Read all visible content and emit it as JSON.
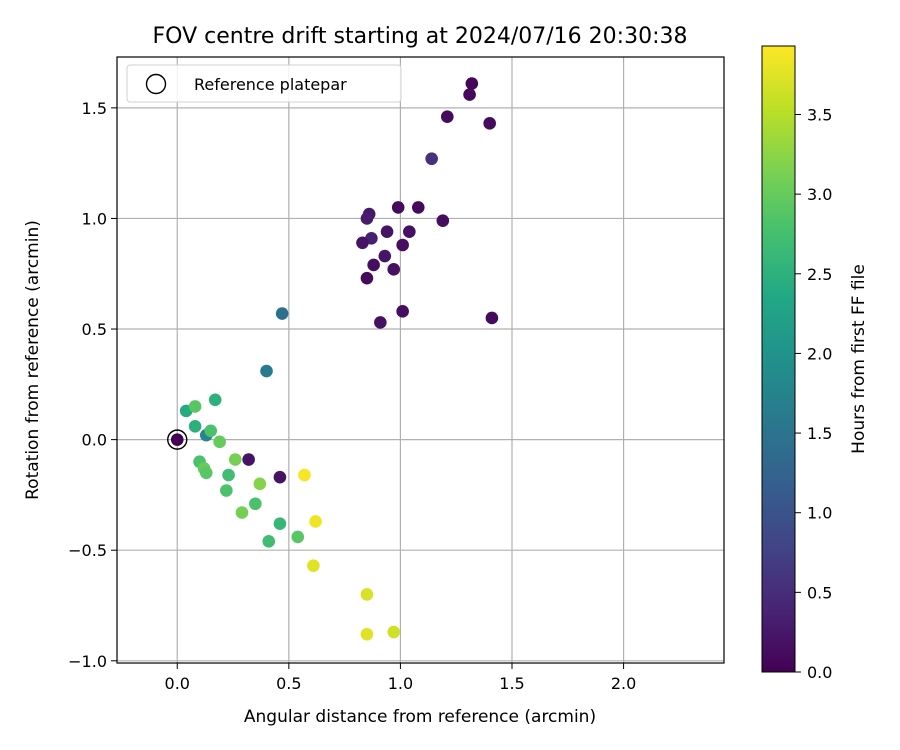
{
  "chart_data": {
    "type": "scatter",
    "title": "FOV centre drift starting at 2024/07/16 20:30:38",
    "xlabel": "Angular distance from reference (arcmin)",
    "ylabel": "Rotation from reference (arcmin)",
    "xlim": [
      -0.27,
      2.45
    ],
    "ylim": [
      -1.01,
      1.73
    ],
    "xticks": [
      0.0,
      0.5,
      1.0,
      1.5,
      2.0
    ],
    "xtick_labels": [
      "0.0",
      "0.5",
      "1.0",
      "1.5",
      "2.0"
    ],
    "yticks": [
      -1.0,
      -0.5,
      0.0,
      0.5,
      1.0,
      1.5
    ],
    "ytick_labels": [
      "−1.0",
      "−0.5",
      "0.0",
      "0.5",
      "1.0",
      "1.5"
    ],
    "grid": true,
    "legend": {
      "entries": [
        "Reference platepar"
      ],
      "position": "top-left"
    },
    "reference_point": {
      "x": 0.0,
      "y": 0.0,
      "marker": "open-circle"
    },
    "colorbar": {
      "label": "Hours from first FF file",
      "colormap": "viridis",
      "range": [
        0.0,
        3.93
      ],
      "ticks": [
        0.0,
        0.5,
        1.0,
        1.5,
        2.0,
        2.5,
        3.0,
        3.5
      ],
      "tick_labels": [
        "0.0",
        "0.5",
        "1.0",
        "1.5",
        "2.0",
        "2.5",
        "3.0",
        "3.5"
      ]
    },
    "points": [
      {
        "x": 0.0,
        "y": 0.0,
        "c": 0.0
      },
      {
        "x": 1.32,
        "y": 1.61,
        "c": 0.05
      },
      {
        "x": 1.31,
        "y": 1.56,
        "c": 0.08
      },
      {
        "x": 1.21,
        "y": 1.46,
        "c": 0.1
      },
      {
        "x": 1.4,
        "y": 1.43,
        "c": 0.12
      },
      {
        "x": 1.14,
        "y": 1.27,
        "c": 0.55
      },
      {
        "x": 0.86,
        "y": 1.02,
        "c": 0.25
      },
      {
        "x": 0.85,
        "y": 1.0,
        "c": 0.3
      },
      {
        "x": 0.99,
        "y": 1.05,
        "c": 0.12
      },
      {
        "x": 1.08,
        "y": 1.05,
        "c": 0.1
      },
      {
        "x": 1.19,
        "y": 0.99,
        "c": 0.15
      },
      {
        "x": 0.94,
        "y": 0.94,
        "c": 0.2
      },
      {
        "x": 1.04,
        "y": 0.94,
        "c": 0.18
      },
      {
        "x": 0.87,
        "y": 0.91,
        "c": 0.35
      },
      {
        "x": 0.83,
        "y": 0.89,
        "c": 0.2
      },
      {
        "x": 1.01,
        "y": 0.88,
        "c": 0.15
      },
      {
        "x": 0.93,
        "y": 0.83,
        "c": 0.22
      },
      {
        "x": 0.88,
        "y": 0.79,
        "c": 0.15
      },
      {
        "x": 0.97,
        "y": 0.77,
        "c": 0.18
      },
      {
        "x": 0.85,
        "y": 0.73,
        "c": 0.12
      },
      {
        "x": 1.01,
        "y": 0.58,
        "c": 0.15
      },
      {
        "x": 0.91,
        "y": 0.53,
        "c": 0.18
      },
      {
        "x": 1.41,
        "y": 0.55,
        "c": 0.12
      },
      {
        "x": 0.47,
        "y": 0.57,
        "c": 1.45
      },
      {
        "x": 0.4,
        "y": 0.31,
        "c": 1.6
      },
      {
        "x": 0.17,
        "y": 0.18,
        "c": 2.5
      },
      {
        "x": 0.04,
        "y": 0.13,
        "c": 2.4
      },
      {
        "x": 0.08,
        "y": 0.15,
        "c": 2.9
      },
      {
        "x": 0.08,
        "y": 0.06,
        "c": 2.5
      },
      {
        "x": 0.13,
        "y": 0.02,
        "c": 1.8
      },
      {
        "x": 0.15,
        "y": 0.04,
        "c": 2.8
      },
      {
        "x": 0.19,
        "y": -0.01,
        "c": 3.0
      },
      {
        "x": 0.32,
        "y": -0.09,
        "c": 0.2
      },
      {
        "x": 0.46,
        "y": -0.17,
        "c": 0.2
      },
      {
        "x": 0.1,
        "y": -0.1,
        "c": 2.8
      },
      {
        "x": 0.12,
        "y": -0.13,
        "c": 3.0
      },
      {
        "x": 0.13,
        "y": -0.15,
        "c": 2.9
      },
      {
        "x": 0.26,
        "y": -0.09,
        "c": 3.1
      },
      {
        "x": 0.23,
        "y": -0.16,
        "c": 2.7
      },
      {
        "x": 0.37,
        "y": -0.2,
        "c": 3.2
      },
      {
        "x": 0.22,
        "y": -0.23,
        "c": 2.8
      },
      {
        "x": 0.35,
        "y": -0.29,
        "c": 2.8
      },
      {
        "x": 0.29,
        "y": -0.33,
        "c": 3.1
      },
      {
        "x": 0.46,
        "y": -0.38,
        "c": 2.6
      },
      {
        "x": 0.41,
        "y": -0.46,
        "c": 2.7
      },
      {
        "x": 0.54,
        "y": -0.44,
        "c": 2.9
      },
      {
        "x": 0.57,
        "y": -0.16,
        "c": 3.9
      },
      {
        "x": 0.62,
        "y": -0.37,
        "c": 3.85
      },
      {
        "x": 0.61,
        "y": -0.57,
        "c": 3.75
      },
      {
        "x": 0.85,
        "y": -0.7,
        "c": 3.7
      },
      {
        "x": 0.85,
        "y": -0.88,
        "c": 3.75
      },
      {
        "x": 0.97,
        "y": -0.87,
        "c": 3.65
      }
    ]
  }
}
